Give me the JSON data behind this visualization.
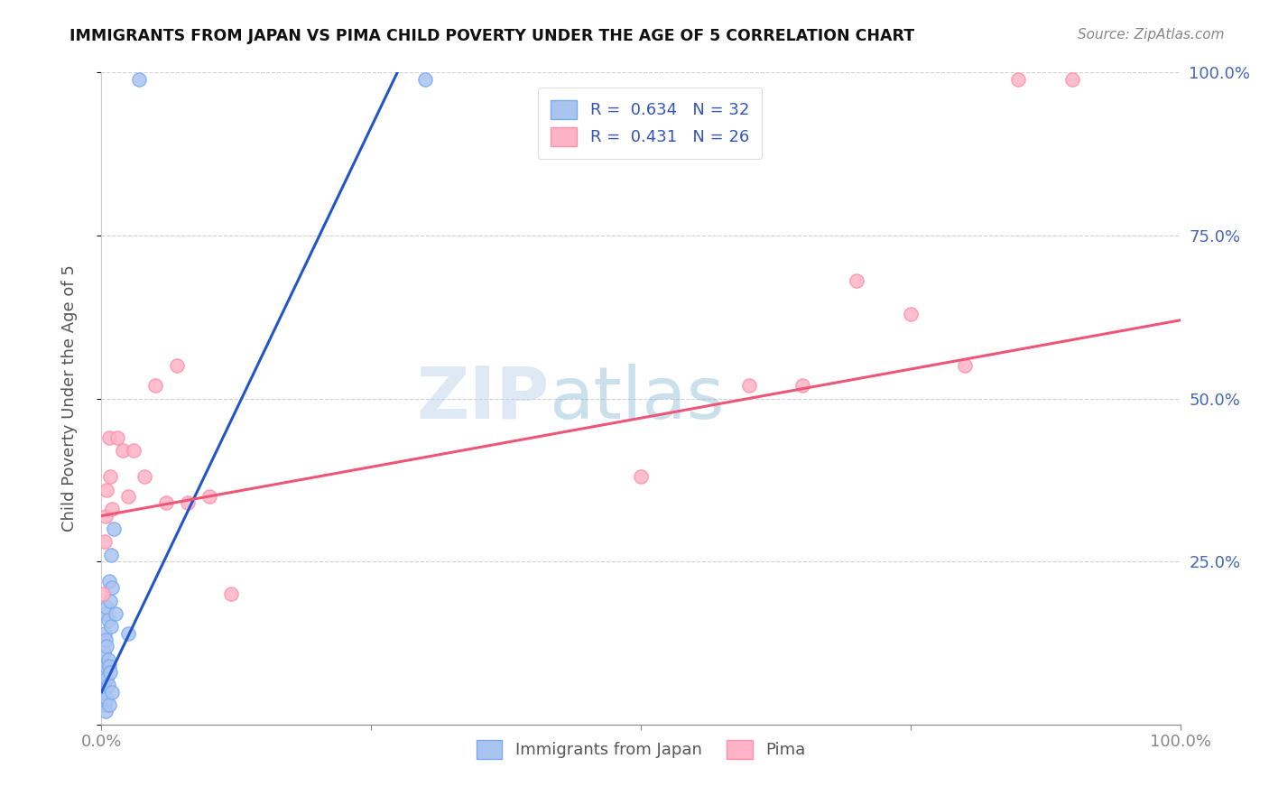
{
  "title": "IMMIGRANTS FROM JAPAN VS PIMA CHILD POVERTY UNDER THE AGE OF 5 CORRELATION CHART",
  "source": "Source: ZipAtlas.com",
  "ylabel": "Child Poverty Under the Age of 5",
  "xlim": [
    0,
    1.0
  ],
  "ylim": [
    0,
    1.0
  ],
  "blue_color": "#aac4f0",
  "blue_edge_color": "#7aabee",
  "pink_color": "#ffb3c6",
  "pink_edge_color": "#ff8fab",
  "blue_line_color": "#2255cc",
  "pink_line_color": "#ee5577",
  "watermark_zip": "ZIP",
  "watermark_atlas": "atlas",
  "blue_scatter_x": [
    0.001,
    0.002,
    0.002,
    0.003,
    0.003,
    0.003,
    0.003,
    0.004,
    0.004,
    0.004,
    0.004,
    0.005,
    0.005,
    0.005,
    0.005,
    0.006,
    0.006,
    0.006,
    0.007,
    0.007,
    0.007,
    0.008,
    0.008,
    0.009,
    0.009,
    0.01,
    0.01,
    0.011,
    0.013,
    0.025,
    0.035,
    0.3
  ],
  "blue_scatter_y": [
    0.04,
    0.06,
    0.11,
    0.03,
    0.05,
    0.08,
    0.14,
    0.02,
    0.09,
    0.13,
    0.17,
    0.04,
    0.07,
    0.12,
    0.18,
    0.06,
    0.1,
    0.16,
    0.03,
    0.09,
    0.22,
    0.08,
    0.19,
    0.15,
    0.26,
    0.05,
    0.21,
    0.3,
    0.17,
    0.14,
    0.99,
    0.99
  ],
  "pink_scatter_x": [
    0.001,
    0.003,
    0.004,
    0.005,
    0.007,
    0.008,
    0.01,
    0.015,
    0.02,
    0.025,
    0.03,
    0.04,
    0.05,
    0.06,
    0.07,
    0.08,
    0.1,
    0.12,
    0.5,
    0.6,
    0.65,
    0.7,
    0.75,
    0.8,
    0.85,
    0.9
  ],
  "pink_scatter_y": [
    0.2,
    0.28,
    0.32,
    0.36,
    0.44,
    0.38,
    0.33,
    0.44,
    0.42,
    0.35,
    0.42,
    0.38,
    0.52,
    0.34,
    0.55,
    0.34,
    0.35,
    0.2,
    0.38,
    0.52,
    0.52,
    0.68,
    0.63,
    0.55,
    0.99,
    0.99
  ],
  "blue_trendline_x": [
    0.0,
    0.28
  ],
  "blue_trendline_y": [
    0.05,
    1.02
  ],
  "pink_trendline_x": [
    0.0,
    1.0
  ],
  "pink_trendline_y": [
    0.32,
    0.62
  ],
  "legend1_text": "R =  0.634   N = 32",
  "legend2_text": "R =  0.431   N = 26",
  "legend_label1": "Immigrants from Japan",
  "legend_label2": "Pima",
  "scatter_size": 120
}
